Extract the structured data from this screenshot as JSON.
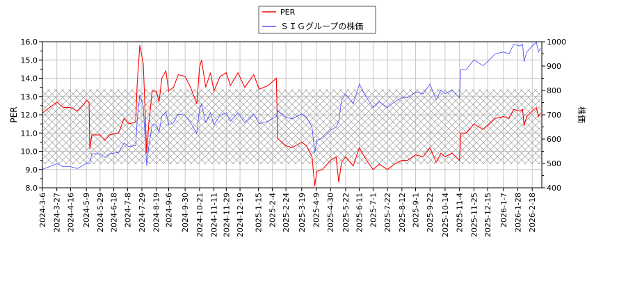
{
  "chart_data": {
    "type": "line",
    "title": "",
    "xlabel": "",
    "ylabel_left": "PER",
    "ylabel_right": "株価",
    "ylim_left": [
      8.0,
      16.0
    ],
    "ylim_right": [
      400,
      1000
    ],
    "yticks_left": [
      "8.0",
      "9.0",
      "10.0",
      "11.0",
      "12.0",
      "13.0",
      "14.0",
      "15.0",
      "16.0"
    ],
    "yticks_right": [
      "400",
      "500",
      "600",
      "700",
      "800",
      "900",
      "1000"
    ],
    "xlim": [
      "2024-03-06",
      "2026-03-04"
    ],
    "xticks": [
      "2024-3-6",
      "2024-3-27",
      "2024-4-16",
      "2024-5-9",
      "2024-5-29",
      "2024-6-18",
      "2024-7-8",
      "2024-7-29",
      "2024-8-19",
      "2024-9-6",
      "2024-9-30",
      "2024-10-21",
      "2024-11-11",
      "2024-11-29",
      "2024-12-19",
      "2025-1-15",
      "2025-2-4",
      "2025-2-24",
      "2025-3-19",
      "2025-4-9",
      "2025-4-30",
      "2025-5-22",
      "2025-6-11",
      "2025-7-1",
      "2025-7-22",
      "2025-8-12",
      "2025-9-1",
      "2025-9-22",
      "2025-10-14",
      "2025-11-4",
      "2025-11-25",
      "2025-12-15",
      "2026-1-7",
      "2026-1-28",
      "2026-2-18"
    ],
    "grid": true,
    "legend_position": "top-center",
    "shaded_band_right_axis": [
      497,
      805
    ],
    "series": [
      {
        "name": "PER",
        "axis": "left",
        "color": "#ff0000",
        "x": [
          "2024-03-06",
          "2024-03-20",
          "2024-03-27",
          "2024-04-05",
          "2024-04-16",
          "2024-04-26",
          "2024-05-06",
          "2024-05-09",
          "2024-05-13",
          "2024-05-14",
          "2024-05-17",
          "2024-05-29",
          "2024-06-05",
          "2024-06-12",
          "2024-06-25",
          "2024-07-03",
          "2024-07-10",
          "2024-07-20",
          "2024-07-22",
          "2024-07-26",
          "2024-07-31",
          "2024-08-05",
          "2024-08-08",
          "2024-08-13",
          "2024-08-19",
          "2024-08-23",
          "2024-08-27",
          "2024-09-02",
          "2024-09-06",
          "2024-09-13",
          "2024-09-20",
          "2024-09-30",
          "2024-10-08",
          "2024-10-17",
          "2024-10-21",
          "2024-10-24",
          "2024-10-30",
          "2024-11-06",
          "2024-11-11",
          "2024-11-20",
          "2024-11-29",
          "2024-12-05",
          "2024-12-16",
          "2024-12-26",
          "2025-01-08",
          "2025-01-16",
          "2025-01-29",
          "2025-02-10",
          "2025-02-12",
          "2025-02-24",
          "2025-03-05",
          "2025-03-19",
          "2025-03-26",
          "2025-04-03",
          "2025-04-07",
          "2025-04-10",
          "2025-04-18",
          "2025-04-30",
          "2025-05-08",
          "2025-05-12",
          "2025-05-16",
          "2025-05-22",
          "2025-06-02",
          "2025-06-11",
          "2025-06-20",
          "2025-07-01",
          "2025-07-10",
          "2025-07-22",
          "2025-08-01",
          "2025-08-12",
          "2025-08-20",
          "2025-09-01",
          "2025-09-12",
          "2025-09-22",
          "2025-10-01",
          "2025-10-08",
          "2025-10-14",
          "2025-10-24",
          "2025-11-04",
          "2025-11-06",
          "2025-11-14",
          "2025-11-25",
          "2025-12-08",
          "2025-12-15",
          "2025-12-26",
          "2026-01-07",
          "2026-01-15",
          "2026-01-22",
          "2026-01-31",
          "2026-02-04",
          "2026-02-06",
          "2026-02-10",
          "2026-02-18",
          "2026-02-24",
          "2026-02-27",
          "2026-03-02"
        ],
        "values": [
          12.1,
          12.5,
          12.7,
          12.4,
          12.4,
          12.2,
          12.6,
          12.8,
          12.7,
          10.1,
          10.9,
          10.9,
          10.6,
          10.9,
          11.0,
          11.8,
          11.5,
          11.6,
          13.6,
          15.8,
          14.8,
          9.9,
          11.5,
          13.3,
          13.3,
          12.7,
          14.0,
          14.4,
          13.3,
          13.5,
          14.2,
          14.1,
          13.5,
          12.6,
          14.6,
          15.0,
          13.5,
          14.3,
          13.3,
          14.1,
          14.3,
          13.6,
          14.3,
          13.5,
          14.2,
          13.4,
          13.6,
          14.0,
          10.7,
          10.3,
          10.2,
          10.5,
          10.3,
          9.7,
          8.1,
          8.9,
          9.0,
          9.5,
          9.7,
          8.3,
          9.4,
          9.7,
          9.2,
          10.2,
          9.6,
          9.0,
          9.3,
          9.0,
          9.3,
          9.5,
          9.5,
          9.8,
          9.7,
          10.2,
          9.4,
          9.9,
          9.7,
          9.9,
          9.5,
          11.0,
          11.0,
          11.5,
          11.2,
          11.4,
          11.8,
          11.9,
          11.8,
          12.3,
          12.2,
          12.3,
          11.4,
          11.9,
          12.2,
          12.4,
          11.9,
          12.1
        ]
      },
      {
        "name": "ＳＩＧグループの株価",
        "axis": "right",
        "color": "#0000ff",
        "x": [
          "2024-03-06",
          "2024-03-20",
          "2024-03-27",
          "2024-04-05",
          "2024-04-16",
          "2024-04-26",
          "2024-05-06",
          "2024-05-09",
          "2024-05-13",
          "2024-05-14",
          "2024-05-17",
          "2024-05-29",
          "2024-06-05",
          "2024-06-12",
          "2024-06-25",
          "2024-07-03",
          "2024-07-10",
          "2024-07-20",
          "2024-07-22",
          "2024-07-26",
          "2024-07-31",
          "2024-08-05",
          "2024-08-08",
          "2024-08-13",
          "2024-08-19",
          "2024-08-23",
          "2024-08-27",
          "2024-09-02",
          "2024-09-06",
          "2024-09-13",
          "2024-09-20",
          "2024-09-30",
          "2024-10-08",
          "2024-10-17",
          "2024-10-21",
          "2024-10-24",
          "2024-10-30",
          "2024-11-06",
          "2024-11-11",
          "2024-11-20",
          "2024-11-29",
          "2024-12-05",
          "2024-12-16",
          "2024-12-26",
          "2025-01-08",
          "2025-01-16",
          "2025-01-29",
          "2025-02-10",
          "2025-02-12",
          "2025-02-24",
          "2025-03-05",
          "2025-03-19",
          "2025-03-26",
          "2025-04-03",
          "2025-04-07",
          "2025-04-10",
          "2025-04-18",
          "2025-04-30",
          "2025-05-08",
          "2025-05-12",
          "2025-05-16",
          "2025-05-22",
          "2025-06-02",
          "2025-06-11",
          "2025-06-20",
          "2025-07-01",
          "2025-07-10",
          "2025-07-22",
          "2025-08-01",
          "2025-08-12",
          "2025-08-20",
          "2025-09-01",
          "2025-09-12",
          "2025-09-22",
          "2025-10-01",
          "2025-10-08",
          "2025-10-14",
          "2025-10-24",
          "2025-11-04",
          "2025-11-06",
          "2025-11-14",
          "2025-11-25",
          "2025-12-08",
          "2025-12-15",
          "2025-12-26",
          "2026-01-07",
          "2026-01-15",
          "2026-01-22",
          "2026-01-31",
          "2026-02-04",
          "2026-02-06",
          "2026-02-10",
          "2026-02-18",
          "2026-02-24",
          "2026-02-27",
          "2026-03-02"
        ],
        "values": [
          476,
          491,
          499,
          487,
          487,
          479,
          495,
          503,
          499,
          500,
          540,
          540,
          525,
          540,
          545,
          584,
          569,
          574,
          673,
          782,
          733,
          490,
          569,
          658,
          658,
          629,
          693,
          713,
          658,
          668,
          703,
          698,
          668,
          624,
          723,
          743,
          668,
          708,
          658,
          698,
          708,
          673,
          708,
          668,
          703,
          663,
          673,
          693,
          717,
          690,
          683,
          704,
          690,
          650,
          543,
          596,
          603,
          637,
          650,
          672,
          761,
          786,
          745,
          826,
          778,
          729,
          753,
          729,
          753,
          770,
          770,
          794,
          786,
          826,
          761,
          802,
          786,
          802,
          770,
          886,
          886,
          926,
          902,
          918,
          950,
          958,
          950,
          990,
          982,
          990,
          918,
          958,
          982,
          998,
          958,
          974
        ]
      }
    ]
  }
}
